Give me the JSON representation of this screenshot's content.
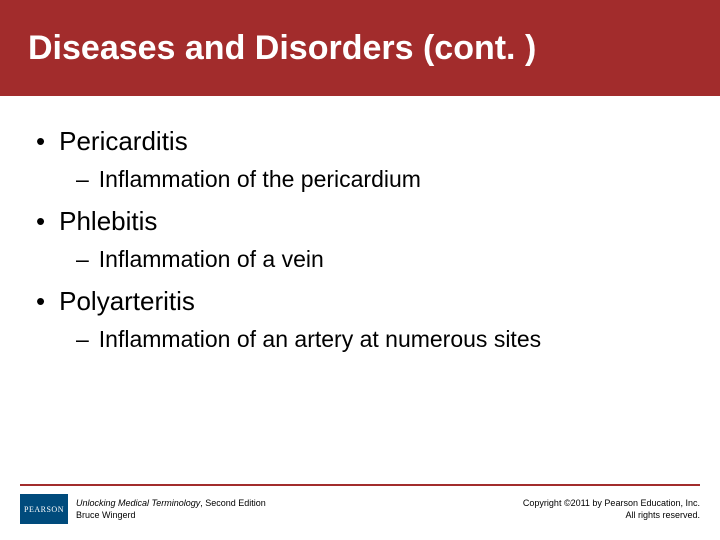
{
  "title": "Diseases and Disorders (cont. )",
  "colors": {
    "header_bg": "#a22c2c",
    "text": "#000000",
    "title_text": "#ffffff",
    "divider": "#a22c2c",
    "logo_bg": "#004b7c"
  },
  "items": [
    {
      "label": "Pericarditis",
      "sub": "Inflammation of the pericardium"
    },
    {
      "label": "Phlebitis",
      "sub": "Inflammation of a vein"
    },
    {
      "label": "Polyarteritis",
      "sub": "Inflammation of an artery at numerous sites"
    }
  ],
  "footer": {
    "logo_text": "PEARSON",
    "book_title": "Unlocking Medical Terminology",
    "edition": ", Second Edition",
    "author": "Bruce Wingerd",
    "copyright_line1": "Copyright ©2011 by Pearson Education, Inc.",
    "copyright_line2": "All rights reserved."
  }
}
